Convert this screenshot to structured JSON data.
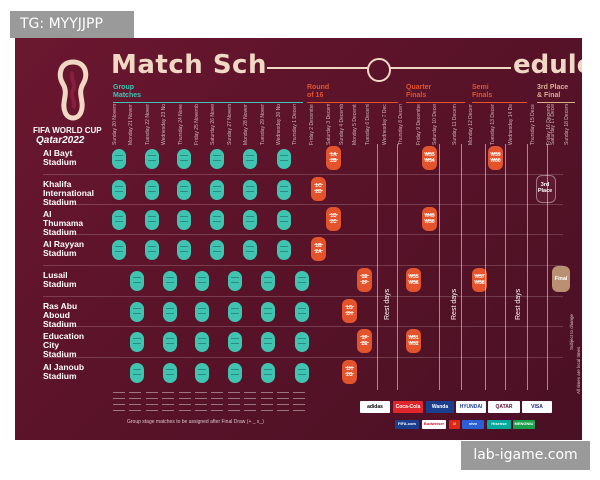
{
  "watermarks": {
    "top_left": "TG: MYYJJPP",
    "bottom_right": "lab-igame.com"
  },
  "title": {
    "left": "Match Sch",
    "right": "edule"
  },
  "logo": {
    "line1": "FIFA WORLD CUP",
    "line2": "Qatar2022"
  },
  "stages": [
    {
      "label": "Group\nMatches",
      "color": "#3fc4b1"
    },
    {
      "label": "Round\nof 16",
      "color": "#e3532c"
    },
    {
      "label": "Quarter\nFinals",
      "color": "#e3532c"
    },
    {
      "label": "Semi\nFinals",
      "color": "#e3532c"
    },
    {
      "label": "3rd Place\n& Final",
      "color": "#d9b08c"
    }
  ],
  "dates": [
    "Sunday 20 November",
    "Monday 21 November",
    "Tuesday 22 November",
    "Wednesday 23 November",
    "Thursday 24 November",
    "Friday 25 November",
    "Saturday 26 November",
    "Sunday 27 November",
    "Monday 28 November",
    "Tuesday 29 November",
    "Wednesday 30 November",
    "Thursday 1 December",
    "Friday 2 December",
    "Saturday 3 December",
    "Sunday 4 December",
    "Monday 5 December",
    "Tuesday 6 December",
    "Wednesday 7 December",
    "Thursday 8 December",
    "Friday 9 December",
    "Saturday 10 December",
    "Sunday 11 December",
    "Monday 12 December",
    "Tuesday 13 December",
    "Wednesday 14 December",
    "Thursday 15 December",
    "Friday 16 December",
    "Saturday 17 December",
    "Sunday 18 December"
  ],
  "stadiums": [
    "Al Bayt\nStadium",
    "Khalifa\nInternational\nStadium",
    "Al\nThumama\nStadium",
    "Al Rayyan\nStadium",
    "Lusail\nStadium",
    "Ras Abu\nAboud\nStadium",
    "Education\nCity\nStadium",
    "Al Janoub\nStadium"
  ],
  "knockout_labels": {
    "r16": [
      "1A\n2B",
      "1C\n2D",
      "1D\n2C",
      "1B\n2A",
      "1E\n2F",
      "1G\n2H",
      "1F\n2E",
      "1H\n2G"
    ],
    "qf": [
      "W53\nW54",
      "W49\nW50",
      "W55\nW56",
      "W51\nW52"
    ],
    "sf": [
      "W59\nW60",
      "W57\nW58"
    ],
    "third_place": "3rd\nPlace",
    "final": "Final"
  },
  "rest_days": [
    "Rest days",
    "Rest days",
    "Rest days"
  ],
  "footnote": "Group stage matches to be assigned after Final Draw (+ _ x_)",
  "side_notes": [
    "Subject to change",
    "All times are local times"
  ],
  "sponsors": {
    "row1": [
      {
        "name": "adidas",
        "color": "#ffffff",
        "text_color": "#000000"
      },
      {
        "name": "Coca-Cola",
        "color": "#e0262c",
        "text_color": "#ffffff"
      },
      {
        "name": "Wanda",
        "color": "#1a3f8f",
        "text_color": "#ffffff"
      },
      {
        "name": "HYUNDAI",
        "color": "#ffffff",
        "text_color": "#1a3f8f"
      },
      {
        "name": "QATAR AIRWAYS",
        "color": "#ffffff",
        "text_color": "#5c0a35"
      },
      {
        "name": "VISA",
        "color": "#ffffff",
        "text_color": "#1a1f71"
      }
    ],
    "row2": [
      {
        "name": "FIFA.com",
        "color": "#1a3f8f",
        "text_color": "#ffffff"
      },
      {
        "name": "Budweiser",
        "color": "#ffffff",
        "text_color": "#c8102e"
      },
      {
        "name": "M",
        "color": "#da291c",
        "text_color": "#ffc72c"
      },
      {
        "name": "vivo",
        "color": "#2b5fd8",
        "text_color": "#ffffff"
      },
      {
        "name": "Hisense",
        "color": "#00a99d",
        "text_color": "#ffffff"
      },
      {
        "name": "MENGNIU",
        "color": "#1a9f4a",
        "text_color": "#ffffff"
      }
    ]
  },
  "colors": {
    "group": "#3fc4b1",
    "knockout": "#e3532c",
    "final": "#b99172",
    "background": "#5a1329"
  }
}
